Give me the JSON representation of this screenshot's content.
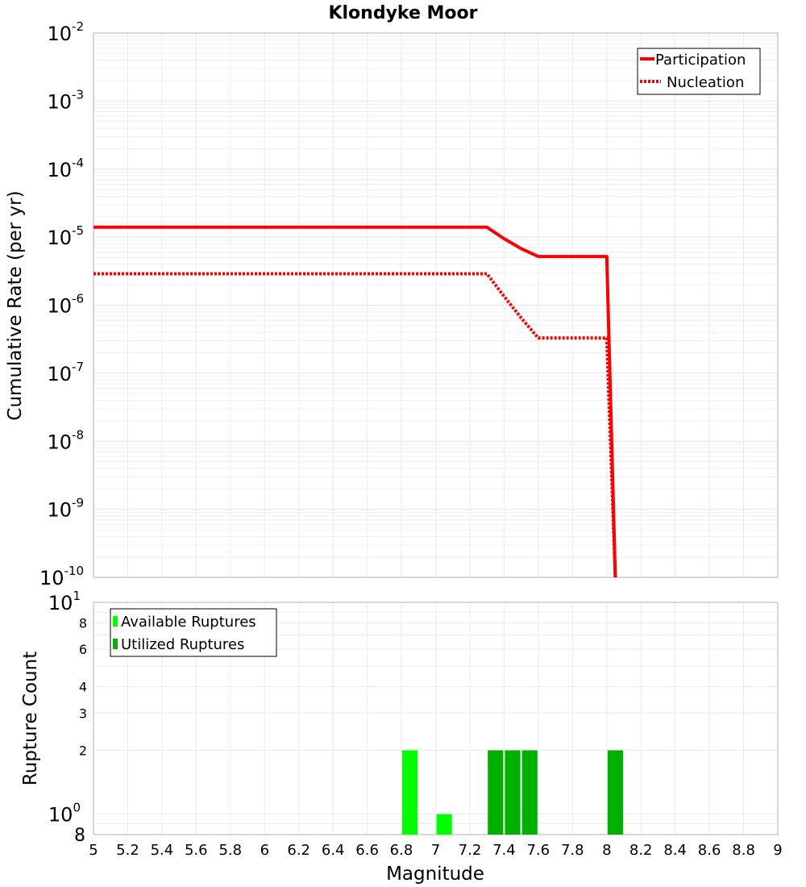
{
  "chart_data": [
    {
      "type": "line",
      "title": "Klondyke Moor",
      "ylabel": "Cumulative Rate (per yr)",
      "xlabel": "",
      "xlim": [
        5,
        9
      ],
      "ylim": [
        1e-10,
        0.01
      ],
      "yscale": "log",
      "y_tick_exponents": [
        "-2",
        "-3",
        "-4",
        "-5",
        "-6",
        "-7",
        "-8",
        "-9",
        "-10"
      ],
      "y_tick_base": "10",
      "legend": {
        "placement": "top-right",
        "entries": [
          "Participation",
          "Nucleation"
        ]
      },
      "series": [
        {
          "name": "Participation",
          "color": "#ff0000",
          "style": "solid",
          "x": [
            5.0,
            7.3,
            7.4,
            7.5,
            7.6,
            7.7,
            7.8,
            7.9,
            8.0,
            8.05
          ],
          "y": [
            1.4e-05,
            1.4e-05,
            9.5e-06,
            6.8e-06,
            5.2e-06,
            5.2e-06,
            5.2e-06,
            5.2e-06,
            5.2e-06,
            1e-10
          ]
        },
        {
          "name": "Nucleation",
          "color": "#ff0000",
          "style": "dotted",
          "x": [
            5.0,
            7.3,
            7.4,
            7.5,
            7.6,
            7.7,
            7.8,
            7.9,
            8.0,
            8.05
          ],
          "y": [
            2.9e-06,
            2.9e-06,
            1.35e-06,
            6.5e-07,
            3.3e-07,
            3.3e-07,
            3.3e-07,
            3.3e-07,
            3.3e-07,
            1e-10
          ]
        }
      ]
    },
    {
      "type": "bar",
      "title": "",
      "xlabel": "Magnitude",
      "ylabel": "Rupture Count",
      "xlim": [
        5,
        9
      ],
      "ylim": [
        0.8,
        10
      ],
      "yscale": "log",
      "x_tick_labels": [
        "5",
        "5.2",
        "5.4",
        "5.6",
        "5.8",
        "6",
        "6.2",
        "6.4",
        "6.6",
        "6.8",
        "7",
        "7.2",
        "7.4",
        "7.6",
        "7.8",
        "8",
        "8.2",
        "8.4",
        "8.6",
        "8.8",
        "9"
      ],
      "y_tick_labels": [
        {
          "value": 8,
          "label": "8"
        },
        {
          "value": 6,
          "label": "6"
        },
        {
          "value": 4,
          "label": "4"
        },
        {
          "value": 3,
          "label": "3"
        },
        {
          "value": 2,
          "label": "2"
        }
      ],
      "y_power_labels": [
        {
          "value": 10,
          "base": "10",
          "exp": "1"
        },
        {
          "value": 1,
          "base": "10",
          "exp": "0"
        }
      ],
      "y_bottom_label": "8",
      "legend": {
        "placement": "top-left",
        "entries": [
          "Available Ruptures",
          "Utilized Ruptures"
        ]
      },
      "series": [
        {
          "name": "Available Ruptures",
          "color": "#00ff00",
          "bars": [
            {
              "x": 6.85,
              "value": 2
            },
            {
              "x": 7.05,
              "value": 1
            }
          ]
        },
        {
          "name": "Utilized Ruptures",
          "color": "#00b000",
          "bars": [
            {
              "x": 7.35,
              "value": 2
            },
            {
              "x": 7.45,
              "value": 2
            },
            {
              "x": 7.55,
              "value": 2
            },
            {
              "x": 8.05,
              "value": 2
            }
          ]
        }
      ]
    }
  ]
}
